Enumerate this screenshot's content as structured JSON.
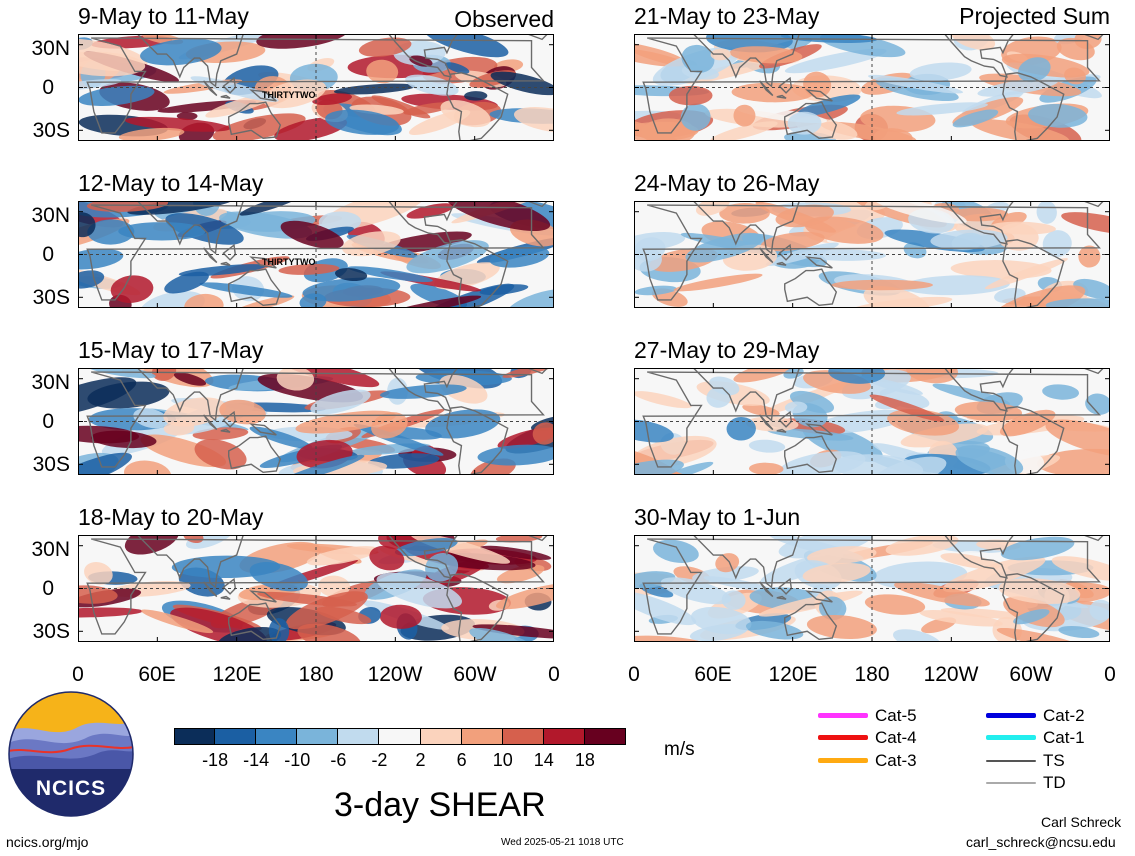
{
  "header": {
    "left_tag": "Observed",
    "right_tag": "Projected Sum"
  },
  "panels": [
    {
      "title": "9-May to 11-May",
      "storm_label": "THIRTYTWO",
      "seed": 11,
      "amp": 1.0
    },
    {
      "title": "21-May to 23-May",
      "seed": 21,
      "amp": 0.55
    },
    {
      "title": "12-May to 14-May",
      "storm_label": "THIRTYTWO",
      "seed": 12,
      "amp": 1.0
    },
    {
      "title": "24-May to 26-May",
      "seed": 24,
      "amp": 0.5
    },
    {
      "title": "15-May to 17-May",
      "seed": 15,
      "amp": 1.0
    },
    {
      "title": "27-May to 29-May",
      "seed": 27,
      "amp": 0.5
    },
    {
      "title": "18-May to 20-May",
      "seed": 18,
      "amp": 1.0
    },
    {
      "title": "30-May to 1-Jun",
      "seed": 30,
      "amp": 0.5
    }
  ],
  "axes": {
    "lat_labels": [
      "30N",
      "0",
      "30S"
    ],
    "lon_labels": [
      "0",
      "60E",
      "120E",
      "180",
      "120W",
      "60W",
      "0"
    ]
  },
  "colorbar": {
    "colors": [
      "#0b2d59",
      "#1b5fa3",
      "#3a85c2",
      "#7ab4da",
      "#c1dbee",
      "#f7f7f7",
      "#fbd3bd",
      "#f2a07c",
      "#d6604d",
      "#b2182b",
      "#67001f"
    ],
    "tick_labels": [
      "-18",
      "-14",
      "-10",
      "-6",
      "-2",
      "2",
      "6",
      "10",
      "14",
      "18"
    ],
    "units": "m/s"
  },
  "track_legend": [
    {
      "label": "Cat-5",
      "color": "#ff33ff"
    },
    {
      "label": "Cat-4",
      "color": "#ee1111"
    },
    {
      "label": "Cat-3",
      "color": "#ffaa11"
    },
    {
      "label": "Cat-2",
      "color": "#0000dd"
    },
    {
      "label": "Cat-1",
      "color": "#22eeee"
    },
    {
      "label": "TS",
      "color": "#555555"
    },
    {
      "label": "TD",
      "color": "#aaaaaa"
    }
  ],
  "logo": {
    "text": "NCICS",
    "colors": {
      "sky": "#f6b319",
      "hills": "#4a57a8",
      "ground": "#1f2a6b",
      "line": "#e8332a"
    }
  },
  "main_title": "3-day SHEAR",
  "footer": {
    "left": "ncics.org/mjo",
    "center": "Wed 2025-05-21 1018 UTC",
    "author": "Carl Schreck",
    "email": "carl_schreck@ncsu.edu"
  }
}
